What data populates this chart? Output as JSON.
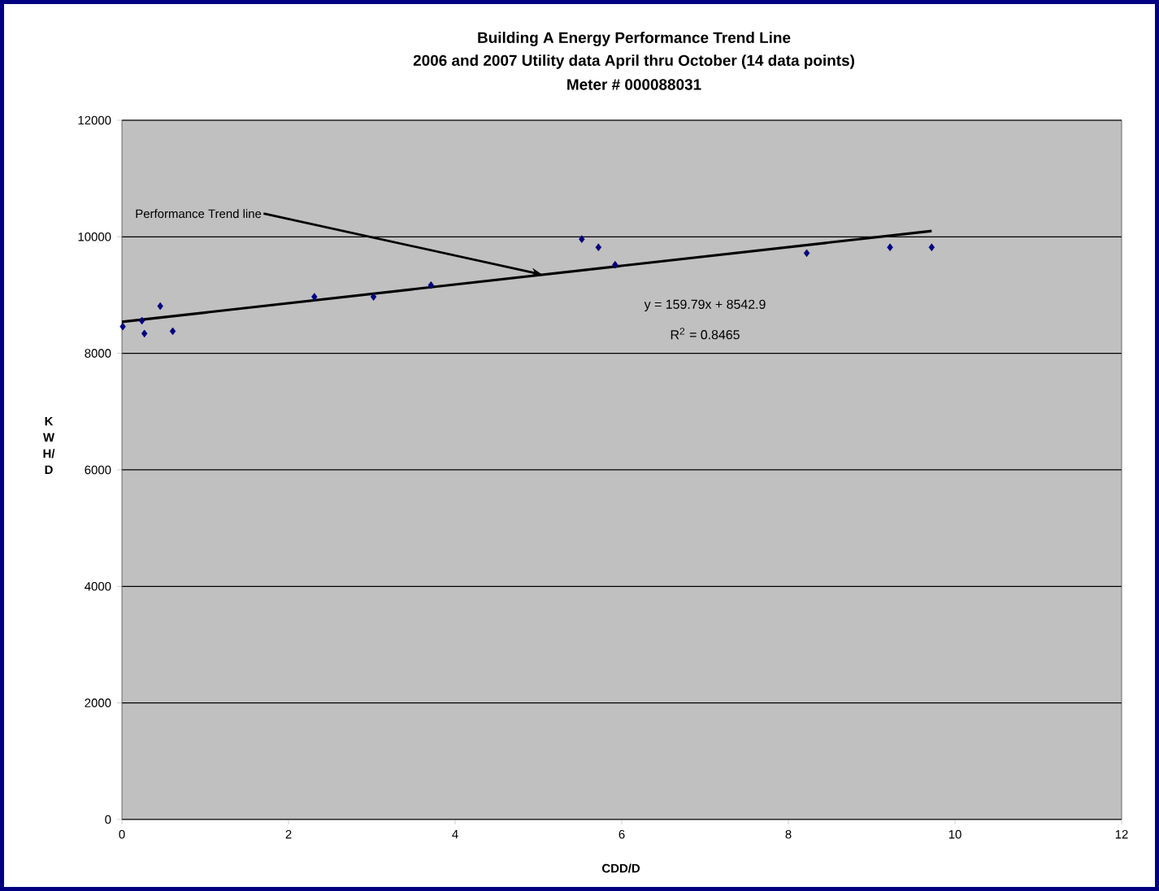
{
  "chart_data": {
    "type": "scatter",
    "title": "Building A Energy Performance Trend Line",
    "subtitle": "2006 and 2007 Utility data April thru October (14 data points)",
    "xlabel": "CDD/D",
    "ylabel": "K W H/ D",
    "annotations": [
      "Meter # 000088031",
      "y = 159.79x + 8542.9",
      "R$^{2}$ = 0.8465",
      {
        "text": "Performance Trend line",
        "x": 5.05,
        "y": 9350
      }
    ],
    "series": [
      {
        "color": "#000080",
        "marker": "diamond",
        "x": [
          0.01,
          0.24,
          0.27,
          0.46,
          0.61,
          2.31,
          3.02,
          3.71,
          5.52,
          5.72,
          5.92,
          8.22,
          9.22,
          9.72
        ],
        "values": [
          8460,
          8560,
          8340,
          8810,
          8380,
          8970,
          8970,
          9170,
          9960,
          9820,
          9520,
          9720,
          9820,
          9820
        ]
      },
      {
        "type": "line",
        "color": "#000000",
        "marker": "none",
        "x": [
          0,
          9.72
        ],
        "values": [
          8540,
          10100
        ]
      }
    ],
    "xlim": [
      0,
      12
    ],
    "ylim": [
      0,
      12000
    ],
    "xticks": [
      0,
      2,
      4,
      6,
      8,
      10,
      12
    ],
    "yticks": [
      0,
      2000,
      4000,
      6000,
      8000,
      10000,
      12000
    ],
    "grid": "y",
    "line_style": "solid"
  }
}
